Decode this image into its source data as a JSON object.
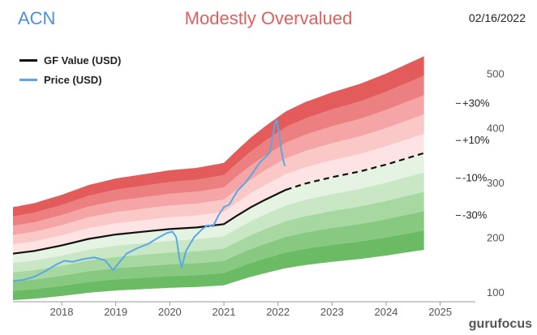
{
  "header": {
    "ticker": "ACN",
    "valuation": "Modestly Overvalued",
    "date": "02/16/2022"
  },
  "logo": {
    "part1": "guru",
    "part2": "focus"
  },
  "colors": {
    "gf_value": "#111111",
    "price": "#5ba7e6",
    "ticker": "#4a90e2",
    "valuation": "#e06060",
    "bands_over": [
      "#fde3e3",
      "#fbc8c8",
      "#f5a5a5",
      "#ec7f7f",
      "#e35b5b"
    ],
    "bands_under": [
      "#e4f3e2",
      "#c9e7c5",
      "#a8d8a2",
      "#88c982",
      "#6bba64"
    ]
  },
  "chart_data": {
    "type": "line",
    "title": "Modestly Overvalued",
    "x_range": [
      2017.1,
      2025.2
    ],
    "y_range": [
      82,
      545
    ],
    "y_ticks": [
      100,
      200,
      300,
      400,
      500
    ],
    "x_ticks": [
      2018,
      2019,
      2020,
      2021,
      2022,
      2023,
      2024,
      2025
    ],
    "band_labels": [
      {
        "label": "+30%",
        "value": 445
      },
      {
        "label": "+10%",
        "value": 377
      },
      {
        "label": "-10%",
        "value": 308
      },
      {
        "label": "-30%",
        "value": 240
      }
    ],
    "gf_value": {
      "name": "GF Value (USD)",
      "history": [
        [
          2017.1,
          170
        ],
        [
          2017.5,
          175
        ],
        [
          2018.0,
          185
        ],
        [
          2018.5,
          197
        ],
        [
          2019.0,
          205
        ],
        [
          2019.5,
          210
        ],
        [
          2020.0,
          215
        ],
        [
          2020.5,
          218
        ],
        [
          2021.0,
          224
        ],
        [
          2021.25,
          240
        ],
        [
          2021.5,
          255
        ],
        [
          2021.75,
          268
        ],
        [
          2022.0,
          280
        ],
        [
          2022.15,
          287
        ]
      ],
      "projection": [
        [
          2022.15,
          287
        ],
        [
          2022.5,
          298
        ],
        [
          2023.0,
          310
        ],
        [
          2023.5,
          320
        ],
        [
          2024.0,
          333
        ],
        [
          2024.5,
          348
        ],
        [
          2024.7,
          354
        ]
      ]
    },
    "price": {
      "name": "Price (USD)",
      "values": [
        [
          2017.1,
          120
        ],
        [
          2017.3,
          122
        ],
        [
          2017.5,
          128
        ],
        [
          2017.7,
          138
        ],
        [
          2017.9,
          150
        ],
        [
          2018.05,
          157
        ],
        [
          2018.2,
          155
        ],
        [
          2018.4,
          160
        ],
        [
          2018.6,
          163
        ],
        [
          2018.8,
          158
        ],
        [
          2018.95,
          140
        ],
        [
          2019.05,
          152
        ],
        [
          2019.2,
          170
        ],
        [
          2019.4,
          180
        ],
        [
          2019.6,
          188
        ],
        [
          2019.8,
          200
        ],
        [
          2019.95,
          208
        ],
        [
          2020.05,
          210
        ],
        [
          2020.12,
          200
        ],
        [
          2020.18,
          160
        ],
        [
          2020.22,
          145
        ],
        [
          2020.3,
          175
        ],
        [
          2020.45,
          200
        ],
        [
          2020.6,
          215
        ],
        [
          2020.7,
          222
        ],
        [
          2020.8,
          220
        ],
        [
          2020.9,
          240
        ],
        [
          2021.0,
          255
        ],
        [
          2021.1,
          260
        ],
        [
          2021.25,
          285
        ],
        [
          2021.4,
          300
        ],
        [
          2021.55,
          320
        ],
        [
          2021.65,
          335
        ],
        [
          2021.75,
          345
        ],
        [
          2021.85,
          355
        ],
        [
          2021.9,
          385
        ],
        [
          2021.95,
          410
        ],
        [
          2021.98,
          414
        ],
        [
          2022.02,
          390
        ],
        [
          2022.06,
          360
        ],
        [
          2022.1,
          340
        ],
        [
          2022.13,
          330
        ]
      ]
    }
  }
}
